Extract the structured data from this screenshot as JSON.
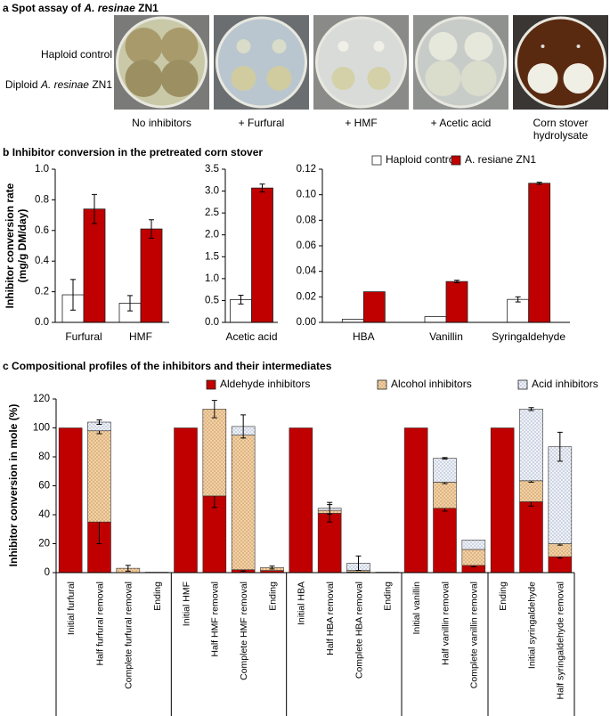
{
  "panel_a": {
    "label": "a",
    "title": [
      "Spot assay of",
      "A. resinae",
      "ZN1"
    ],
    "row_1": "Haploid control",
    "row_2": [
      "Diploid",
      "A. resinae",
      "ZN1"
    ],
    "plates": [
      "No inhibitors",
      "+ Furfural",
      "+ HMF",
      "+ Acetic acid",
      "Corn stover hydrolysate"
    ]
  },
  "panel_b": {
    "label": "b",
    "title": "Inhibitor conversion in the pretreated corn stover",
    "y_label": [
      "Inhibitor conversion rate",
      "(mg/g DM/day)"
    ]
  },
  "panel_c": {
    "label": "c"
  },
  "chart_data": [
    {
      "type": "bar",
      "categories": [
        "Furfural",
        "HMF"
      ],
      "series": [
        {
          "color": "#ffffff",
          "values": [
            0.18,
            0.125
          ],
          "errors": [
            0.1,
            0.05
          ]
        },
        {
          "color": "#c00000",
          "values": [
            0.74,
            0.61
          ],
          "errors": [
            0.095,
            0.06
          ]
        }
      ],
      "ylim": [
        0,
        1
      ],
      "yticks": [
        {
          "value": 0,
          "label": "0.0"
        },
        0.2,
        0.4,
        0.6,
        0.8,
        {
          "value": 1,
          "label": "1.0"
        }
      ]
    },
    {
      "type": "bar",
      "categories": [
        "Acetic acid"
      ],
      "series": [
        {
          "color": "#ffffff",
          "values": [
            0.52
          ],
          "errors": [
            0.1
          ]
        },
        {
          "color": "#c00000",
          "values": [
            3.07
          ],
          "errors": [
            0.09
          ]
        }
      ],
      "ylim": [
        0,
        3.5
      ],
      "yticks": [
        {
          "value": 0,
          "label": "0.0"
        },
        0.5,
        {
          "value": 1,
          "label": "1.0"
        },
        1.5,
        {
          "value": 2,
          "label": "2.0"
        },
        2.5,
        {
          "value": 3,
          "label": "3.0"
        },
        3.5
      ]
    },
    {
      "type": "bar",
      "categories": [
        "HBA",
        "Vanillin",
        "Syringaldehyde"
      ],
      "legend": "top",
      "series": [
        {
          "name": "Haploid control",
          "color": "#ffffff",
          "values": [
            0.0025,
            0.0045,
            0.018
          ],
          "errors": [
            null,
            null,
            0.002
          ]
        },
        {
          "name": "A. resiane ZN1",
          "color": "#c00000",
          "values": [
            0.024,
            0.032,
            0.109
          ],
          "errors": [
            null,
            0.001,
            0.0008
          ]
        }
      ],
      "ylim": [
        0,
        0.12
      ],
      "yticks": [
        {
          "value": 0,
          "label": "0.00"
        },
        0.02,
        0.04,
        0.06,
        0.08,
        {
          "value": 0.1,
          "label": "0.10"
        },
        0.12
      ]
    },
    {
      "type": "stacked_bar",
      "title": "Compositional profiles of the inhibitors and their intermediates",
      "y_label": "Inhibitor conversion in mole (%)",
      "legend": "top",
      "categories": [
        "Initial furfural",
        "Half furfural removal",
        "Complete furfural removal",
        "Ending",
        "Initial HMF",
        "Half HMF removal",
        "Complete HMF removal",
        "Ending",
        "Initial HBA",
        "Half HBA removal",
        "Complete HBA removal",
        "Ending",
        "Initial vanillin",
        "Half vanillin removal",
        "Complete vanillin removal",
        "Ending",
        "Initial syringaldehyde",
        "Half syringaldehyde removal"
      ],
      "series": [
        {
          "name": "Aldehyde inhibitors",
          "color": "#c00000",
          "values": [
            100,
            35,
            0,
            0.3,
            100,
            53,
            2,
            1.5,
            100,
            41,
            0.5,
            0.3,
            100,
            44.5,
            5,
            100,
            49,
            11
          ],
          "errors": [
            null,
            15,
            null,
            null,
            null,
            8,
            1,
            null,
            null,
            6,
            null,
            null,
            null,
            2,
            1,
            null,
            3,
            1
          ]
        },
        {
          "name": "Alcohol inhibitors",
          "color": "#f9d09a",
          "pattern": "dots",
          "values": [
            0,
            63,
            3,
            0,
            0,
            60,
            93,
            2,
            0,
            2,
            1,
            0,
            0,
            18,
            11,
            0,
            14.5,
            9
          ],
          "errors": [
            null,
            2,
            2,
            null,
            null,
            6,
            null,
            1,
            null,
            null,
            null,
            null,
            null,
            1,
            null,
            null,
            1,
            1
          ]
        },
        {
          "name": "Acid inhibitors",
          "color": "#eef2fa",
          "pattern": "dots",
          "values": [
            0,
            6,
            0,
            0,
            0,
            0,
            6,
            0,
            0,
            1.5,
            5,
            0,
            0,
            16.5,
            6.5,
            0,
            49.5,
            67
          ],
          "errors": [
            null,
            1.5,
            null,
            null,
            null,
            null,
            8,
            null,
            null,
            4,
            5,
            null,
            null,
            0.5,
            null,
            null,
            1,
            10
          ]
        }
      ],
      "ylim": [
        0,
        120
      ],
      "yticks": [
        0,
        20,
        40,
        60,
        80,
        100,
        120
      ]
    }
  ]
}
